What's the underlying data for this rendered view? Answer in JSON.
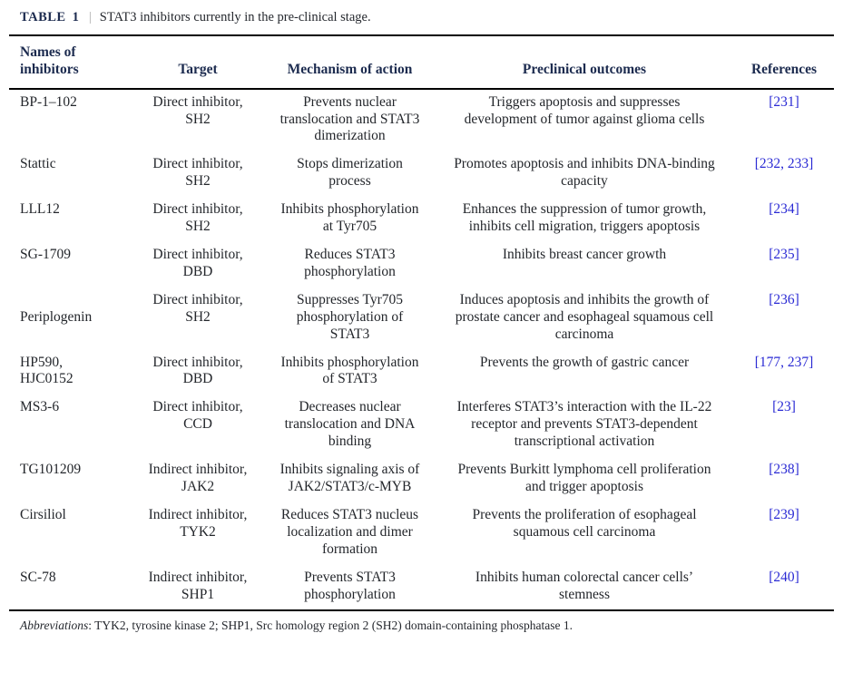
{
  "caption": {
    "label": "TABLE",
    "number": "1",
    "separator": "|",
    "text": "STAT3 inhibitors currently in the pre-clinical stage."
  },
  "columns": [
    "Names of inhibitors",
    "Target",
    "Mechanism of action",
    "Preclinical outcomes",
    "References"
  ],
  "rows": [
    {
      "name": "BP-1–102",
      "target": "Direct inhibitor, SH2",
      "mechanism": "Prevents nuclear translocation and STAT3 dimerization",
      "outcomes": "Triggers apoptosis and suppresses development of tumor against glioma cells",
      "references": [
        "231"
      ]
    },
    {
      "name": "Stattic",
      "target": "Direct inhibitor, SH2",
      "mechanism": "Stops dimerization process",
      "outcomes": "Promotes apoptosis and inhibits DNA-binding capacity",
      "references": [
        "232",
        "233"
      ]
    },
    {
      "name": "LLL12",
      "target": "Direct inhibitor, SH2",
      "mechanism": "Inhibits phosphorylation at Tyr705",
      "outcomes": "Enhances the suppression of tumor growth, inhibits cell migration, triggers apoptosis",
      "references": [
        "234"
      ]
    },
    {
      "name": "SG-1709",
      "target": "Direct inhibitor, DBD",
      "mechanism": "Reduces STAT3 phosphorylation",
      "outcomes": "Inhibits breast cancer growth",
      "references": [
        "235"
      ]
    },
    {
      "name": "Periplogenin",
      "target": "Direct inhibitor, SH2",
      "mechanism": "Suppresses Tyr705 phosphorylation of STAT3",
      "outcomes": "Induces apoptosis and inhibits the growth of prostate cancer and esophageal squamous cell carcinoma",
      "references": [
        "236"
      ]
    },
    {
      "name": "HP590, HJC0152",
      "target": "Direct inhibitor, DBD",
      "mechanism": "Inhibits phosphorylation of STAT3",
      "outcomes": "Prevents the growth of gastric cancer",
      "references": [
        "177",
        "237"
      ]
    },
    {
      "name": "MS3-6",
      "target": "Direct inhibitor, CCD",
      "mechanism": "Decreases nuclear translocation and DNA binding",
      "outcomes": "Interferes STAT3’s interaction with the IL-22 receptor and prevents STAT3-dependent transcriptional activation",
      "references": [
        "23"
      ]
    },
    {
      "name": "TG101209",
      "target": "Indirect inhibitor, JAK2",
      "mechanism": "Inhibits signaling axis of JAK2/STAT3/c-MYB",
      "outcomes": "Prevents Burkitt lymphoma cell proliferation and trigger apoptosis",
      "references": [
        "238"
      ]
    },
    {
      "name": "Cirsiliol",
      "target": "Indirect inhibitor, TYK2",
      "mechanism": "Reduces STAT3 nucleus localization and dimer formation",
      "outcomes": "Prevents the proliferation of esophageal squamous cell carcinoma",
      "references": [
        "239"
      ]
    },
    {
      "name": "SC-78",
      "target": "Indirect inhibitor, SHP1",
      "mechanism": "Prevents STAT3 phosphorylation",
      "outcomes": "Inhibits human colorectal cancer cells’ stemness",
      "references": [
        "240"
      ]
    }
  ],
  "footnote": {
    "label": "Abbreviations",
    "text": ": TYK2, tyrosine kinase 2; SHP1, Src homology region 2 (SH2) domain-containing phosphatase 1."
  },
  "colors": {
    "header_text": "#1c2b4f",
    "body_text": "#23262b",
    "reference_link": "#2a2ad4",
    "rule": "#000000"
  }
}
